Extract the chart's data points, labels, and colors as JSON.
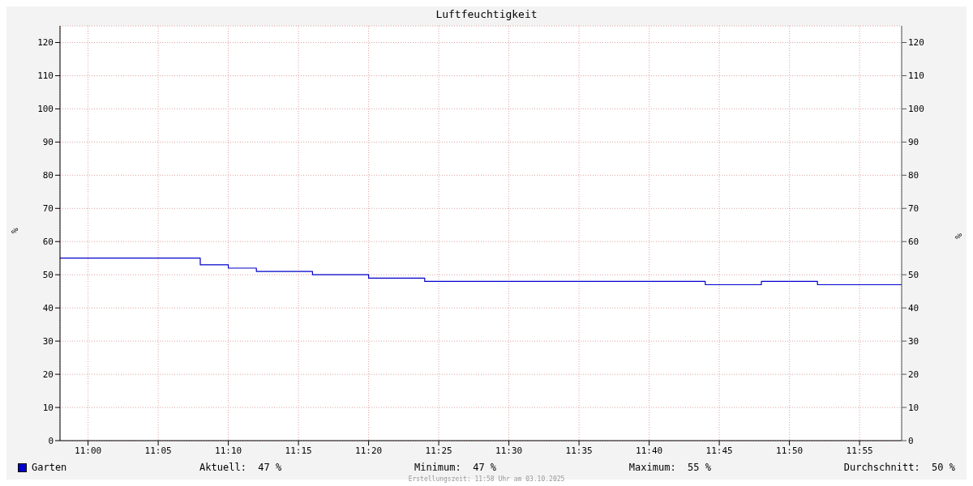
{
  "chart_data": {
    "type": "step",
    "title": "Luftfeuchtigkeit",
    "ylabel": "%",
    "y2label": "%",
    "x": [
      10.966667,
      11.133333,
      11.166667,
      11.2,
      11.266667,
      11.333333,
      11.4,
      11.733333,
      11.8,
      11.866667,
      11.966667
    ],
    "series": [
      {
        "name": "Garten",
        "color": "#0000cc",
        "values": [
          55,
          53,
          52,
          51,
          50,
          49,
          48,
          47,
          48,
          47,
          47
        ]
      }
    ],
    "xlim": [
      10.966667,
      11.966667
    ],
    "xticks": [
      {
        "value": 11,
        "label": "11:00"
      },
      {
        "value": 11.083333,
        "label": "11:05"
      },
      {
        "value": 11.166667,
        "label": "11:10"
      },
      {
        "value": 11.25,
        "label": "11:15"
      },
      {
        "value": 11.333333,
        "label": "11:20"
      },
      {
        "value": 11.416667,
        "label": "11:25"
      },
      {
        "value": 11.5,
        "label": "11:30"
      },
      {
        "value": 11.583333,
        "label": "11:35"
      },
      {
        "value": 11.666667,
        "label": "11:40"
      },
      {
        "value": 11.75,
        "label": "11:45"
      },
      {
        "value": 11.833333,
        "label": "11:50"
      },
      {
        "value": 11.916667,
        "label": "11:55"
      }
    ],
    "ylim": [
      0,
      125
    ],
    "yticks": [
      0,
      10,
      20,
      30,
      40,
      50,
      60,
      70,
      80,
      90,
      100,
      110,
      120
    ],
    "y2lim": [
      0,
      125
    ],
    "y2ticks": [
      0,
      10,
      20,
      30,
      40,
      50,
      60,
      70,
      80,
      90,
      100,
      110,
      120
    ],
    "grid": true,
    "legend": "bottom left",
    "marker": "none",
    "line_style": "solid",
    "annotations": [
      "Aktuell:  47 %",
      "Minimum:  47 %",
      "Maximum:  55 %",
      "Durchschnitt:  50 %",
      "Erstellungszeit: 11:58 Uhr am 03.10.2025"
    ]
  }
}
